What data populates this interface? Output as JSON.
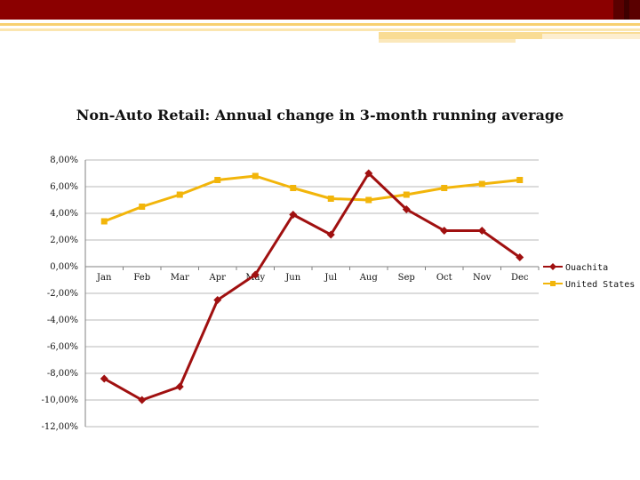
{
  "chart_data": {
    "type": "line",
    "title": "Non-Auto Retail: Annual change in 3-month running average",
    "categories": [
      "Jan",
      "Feb",
      "Mar",
      "Apr",
      "May",
      "Jun",
      "Jul",
      "Aug",
      "Sep",
      "Oct",
      "Nov",
      "Dec"
    ],
    "y_ticks": [
      "8,00%",
      "6,00%",
      "4,00%",
      "2,00%",
      "0,00%",
      "-2,00%",
      "-4,00%",
      "-6,00%",
      "-8,00%",
      "-10,00%",
      "-12,00%"
    ],
    "ylim": [
      -12,
      8
    ],
    "y_step": 2,
    "legend_position": "right",
    "series": [
      {
        "name": "Ouachita",
        "color": "#a01010",
        "marker": "diamond",
        "values": [
          -8.4,
          -10.0,
          -9.0,
          -2.5,
          -0.6,
          3.9,
          2.4,
          7.0,
          4.3,
          2.7,
          2.7,
          0.7
        ]
      },
      {
        "name": "United States",
        "color": "#f2b50a",
        "marker": "square",
        "values": [
          3.4,
          4.5,
          5.4,
          6.5,
          6.8,
          5.9,
          5.1,
          5.0,
          5.4,
          5.9,
          6.2,
          6.5
        ]
      }
    ]
  }
}
